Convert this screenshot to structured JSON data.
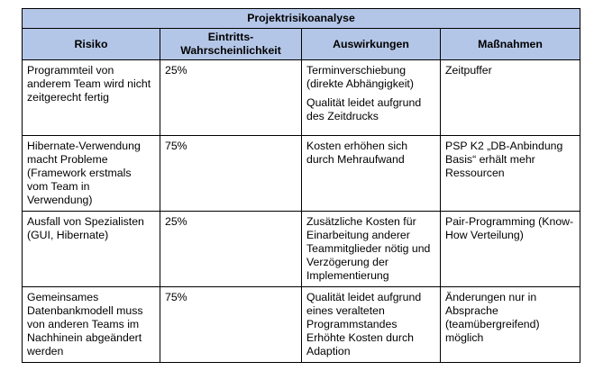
{
  "table": {
    "title": "Projektrisikoanalyse",
    "headers": [
      "Risiko",
      "Eintritts-\nWahrscheinlichkeit",
      "Auswirkungen",
      "Maßnahmen"
    ],
    "rows": [
      {
        "risiko": "Programmteil von anderem Team wird nicht zeitgerecht fertig",
        "wahrscheinlichkeit": "25%",
        "auswirkungen": [
          "Terminverschiebung (direkte Abhängigkeit)",
          "Qualität leidet aufgrund des Zeitdrucks"
        ],
        "massnahmen": "Zeitpuffer"
      },
      {
        "risiko": "Hibernate-Verwendung macht Probleme (Framework erstmals vom Team in Verwendung)",
        "wahrscheinlichkeit": "75%",
        "auswirkungen": [
          "Kosten erhöhen sich durch Mehraufwand"
        ],
        "massnahmen": "PSP K2 „DB-Anbindung Basis“ erhält mehr Ressourcen"
      },
      {
        "risiko": "Ausfall von Spezialisten (GUI, Hibernate)",
        "wahrscheinlichkeit": "25%",
        "auswirkungen": [
          "Zusätzliche Kosten für Einarbeitung anderer Teammitglieder nötig und Verzögerung der Implementierung"
        ],
        "massnahmen": "Pair-Programming (Know-How Verteilung)"
      },
      {
        "risiko": "Gemeinsames Datenbankmodell muss von anderen Teams im Nachhinein abgeändert werden",
        "wahrscheinlichkeit": "75%",
        "auswirkungen": [
          "Qualität leidet aufgrund eines veralteten Programmstandes Erhöhte Kosten durch Adaption"
        ],
        "massnahmen": "Änderungen nur in Absprache (teamübergreifend) möglich"
      }
    ]
  }
}
